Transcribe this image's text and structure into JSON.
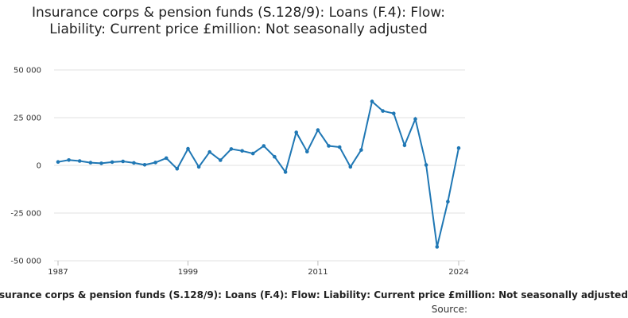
{
  "chart_data": {
    "type": "line",
    "title": "Insurance corps & pension funds (S.128/9): Loans (F.4): Flow: Liability: Current price £million: Not seasonally adjusted",
    "series": [
      {
        "name": "Insurance corps & pension funds (S.128/9): Loans (F.4): Flow: Liability: Current price £million: Not seasonally adjusted",
        "color": "#1f77b4",
        "x": [
          1987,
          1988,
          1989,
          1990,
          1991,
          1992,
          1993,
          1994,
          1995,
          1996,
          1997,
          1998,
          1999,
          2000,
          2001,
          2002,
          2003,
          2004,
          2005,
          2006,
          2007,
          2008,
          2009,
          2010,
          2011,
          2012,
          2013,
          2014,
          2015,
          2016,
          2017,
          2018,
          2019,
          2020,
          2021,
          2022,
          2023,
          2024
        ],
        "values": [
          1800,
          2800,
          2300,
          1400,
          1100,
          1700,
          2100,
          1300,
          300,
          1500,
          3800,
          -1800,
          8700,
          -800,
          7000,
          2700,
          8600,
          7600,
          6200,
          10200,
          4500,
          -3500,
          17300,
          7200,
          18500,
          10200,
          9600,
          -800,
          8100,
          33500,
          28500,
          27200,
          10500,
          24300,
          200,
          -42700,
          -19000,
          9100
        ]
      }
    ],
    "x_ticks": [
      "1987",
      "1999",
      "2011",
      "2024"
    ],
    "y_ticks": [
      "50 000",
      "25 000",
      "0",
      "-25 000",
      "-50 000"
    ],
    "xlim": [
      1987,
      2024
    ],
    "ylim": [
      -50000,
      50000
    ],
    "grid": true,
    "legend": "bottom",
    "source_label": "Source:"
  }
}
